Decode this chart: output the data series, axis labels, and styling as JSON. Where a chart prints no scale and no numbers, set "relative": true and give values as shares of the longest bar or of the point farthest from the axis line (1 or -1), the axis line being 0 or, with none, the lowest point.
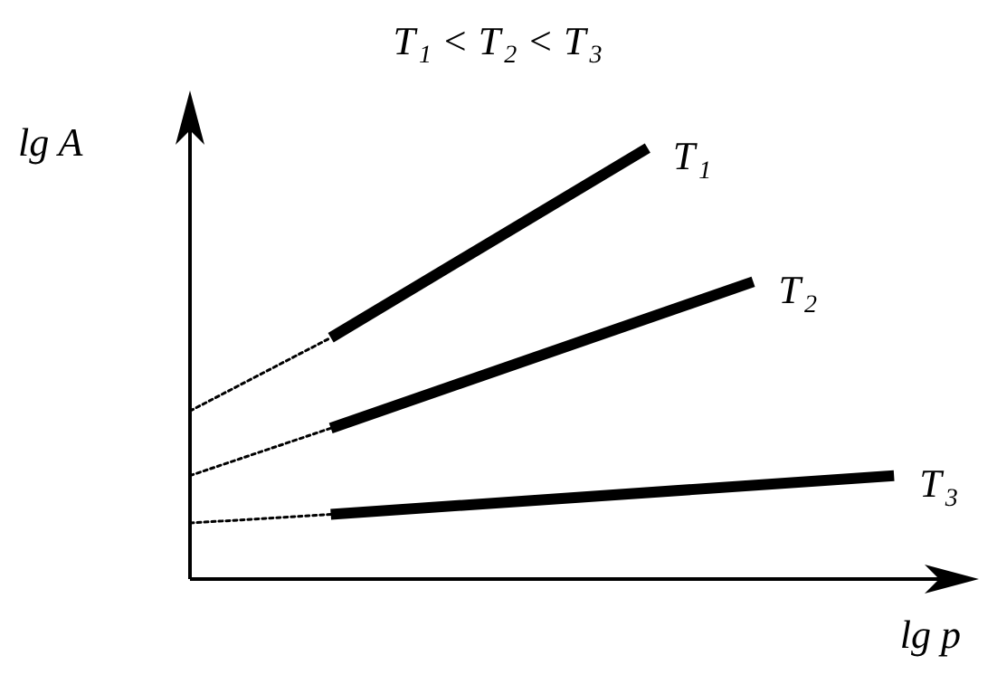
{
  "chart_data": {
    "type": "line",
    "title": "T$_{1}$ < T$_{2}$ < T$_{3}$",
    "xlabel": "lg p",
    "ylabel": "lg A",
    "relative": true,
    "legend": false,
    "grid": false,
    "marker": "none",
    "categories": [
      null,
      null,
      null,
      null,
      null,
      null,
      null,
      null,
      null,
      null,
      null,
      null,
      null,
      null,
      null,
      null,
      null,
      null,
      null,
      null,
      null
    ],
    "series": [
      {
        "name": "T$_{1}$",
        "color": "#000000",
        "values": [
          null,
          null,
          null,
          null,
          0.56,
          null,
          null,
          null,
          null,
          null,
          null,
          null,
          null,
          1.0,
          null,
          null,
          null,
          null,
          null,
          null,
          null
        ]
      },
      {
        "name": "T$_{2}$",
        "color": "#000000",
        "values": [
          null,
          null,
          null,
          null,
          0.35,
          null,
          null,
          null,
          null,
          null,
          null,
          null,
          null,
          null,
          null,
          null,
          0.69,
          null,
          null,
          null,
          null
        ]
      },
      {
        "name": "T$_{3}$",
        "color": "#000000",
        "values": [
          null,
          null,
          null,
          null,
          0.15,
          null,
          null,
          null,
          null,
          null,
          null,
          null,
          null,
          null,
          null,
          null,
          null,
          null,
          null,
          null,
          0.24
        ]
      },
      {
        "color": "#000000",
        "line_style": "dotted",
        "values": [
          0.39,
          null,
          null,
          null,
          0.56,
          null,
          null,
          null,
          null,
          null,
          null,
          null,
          null,
          null,
          null,
          null,
          null,
          null,
          null,
          null,
          null
        ]
      },
      {
        "color": "#000000",
        "line_style": "dotted",
        "values": [
          0.24,
          null,
          null,
          null,
          0.35,
          null,
          null,
          null,
          null,
          null,
          null,
          null,
          null,
          null,
          null,
          null,
          null,
          null,
          null,
          null,
          null
        ]
      },
      {
        "color": "#000000",
        "line_style": "dotted",
        "values": [
          0.13,
          null,
          null,
          null,
          0.15,
          null,
          null,
          null,
          null,
          null,
          null,
          null,
          null,
          null,
          null,
          null,
          null,
          null,
          null,
          null,
          null
        ]
      }
    ]
  }
}
